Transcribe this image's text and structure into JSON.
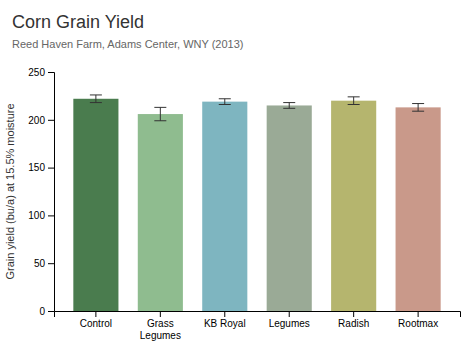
{
  "chart_data": {
    "type": "bar",
    "title": "Corn Grain Yield",
    "subtitle": "Reed Haven Farm, Adams Center, WNY (2013)",
    "categories": [
      "Control",
      "Grass\nLegumes",
      "KB Royal",
      "Legumes",
      "Radish",
      "Rootmax"
    ],
    "values": [
      222,
      206,
      219,
      215,
      220,
      213
    ],
    "errors": [
      4,
      7,
      3,
      3,
      4,
      4
    ],
    "colors": [
      "#4a7c4e",
      "#8fbc8f",
      "#7eb5c0",
      "#9aaa96",
      "#b5b56e",
      "#c9998a"
    ],
    "ylabel": "Grain yield (bu/a) at 15.5% moisture",
    "ylim": [
      0,
      250
    ],
    "yticks": [
      0,
      50,
      100,
      150,
      200,
      250
    ],
    "grid": false
  }
}
